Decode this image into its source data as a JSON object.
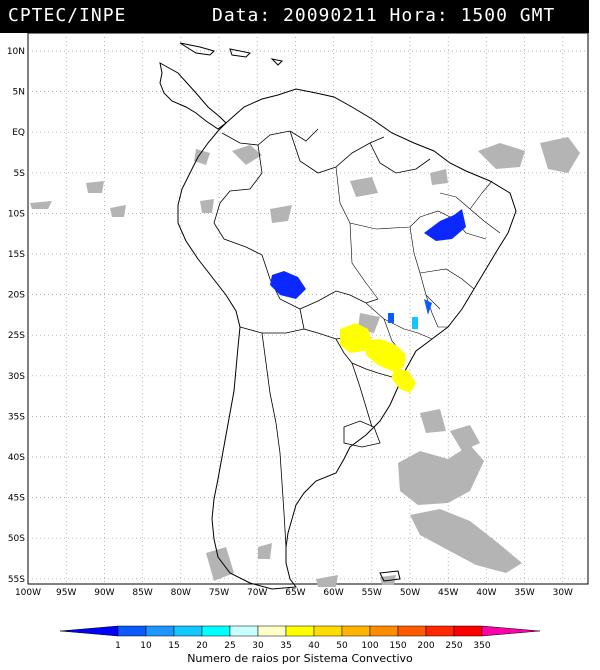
{
  "header": {
    "left": "CPTEC/INPE",
    "right": "Data: 20090211 Hora: 1500 GMT"
  },
  "map": {
    "lat_labels": [
      "10N",
      "5N",
      "EQ",
      "5S",
      "10S",
      "15S",
      "20S",
      "25S",
      "30S",
      "35S",
      "40S",
      "45S",
      "50S",
      "55S"
    ],
    "lon_labels": [
      "100W",
      "95W",
      "90W",
      "85W",
      "80W",
      "75W",
      "70W",
      "65W",
      "60W",
      "55W",
      "50W",
      "45W",
      "40W",
      "35W",
      "30W"
    ],
    "colors": {
      "land_line": "#000000",
      "cloud": "#b4b4b4",
      "background": "#ffffff"
    }
  },
  "legend": {
    "labels": [
      "1",
      "10",
      "15",
      "20",
      "25",
      "30",
      "35",
      "40",
      "50",
      "100",
      "150",
      "200",
      "250",
      "350"
    ],
    "colors": [
      "#0000ff",
      "#0a5aff",
      "#1e96ff",
      "#14c8ff",
      "#00ffff",
      "#c8ffff",
      "#ffffc8",
      "#ffff00",
      "#ffdc00",
      "#ffb400",
      "#ff8c00",
      "#ff5a00",
      "#ff2800",
      "#ff0000",
      "#ff00aa"
    ],
    "caption": "Numero de raios por Sistema Convectivo"
  }
}
